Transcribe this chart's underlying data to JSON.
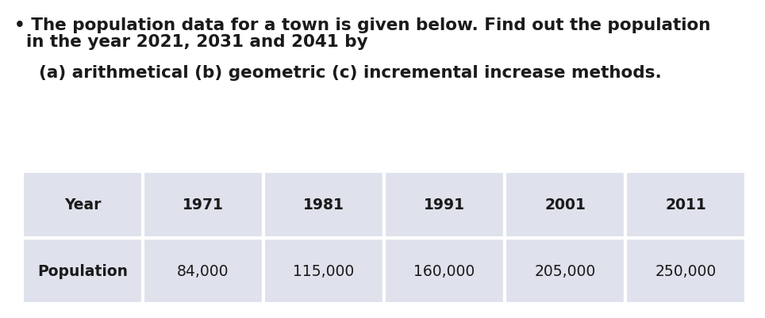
{
  "line1": "• The population data for a town is given below. Find out the population",
  "line2": "  in the year 2021, 2031 and 2041 by",
  "line3": "  (a) arithmetical (b) geometric (c) incremental increase methods.",
  "table_headers": [
    "Year",
    "1971",
    "1981",
    "1991",
    "2001",
    "2011"
  ],
  "table_row_label": "Population",
  "table_row_values": [
    "84,000",
    "115,000",
    "160,000",
    "205,000",
    "250,000"
  ],
  "background_color": "#ffffff",
  "table_fill_color": "#dfe2ec",
  "table_border_color": "#ffffff",
  "text_fontsize": 15.5,
  "table_fontsize": 13.5,
  "fig_width": 9.64,
  "fig_height": 4.02,
  "dpi": 100
}
